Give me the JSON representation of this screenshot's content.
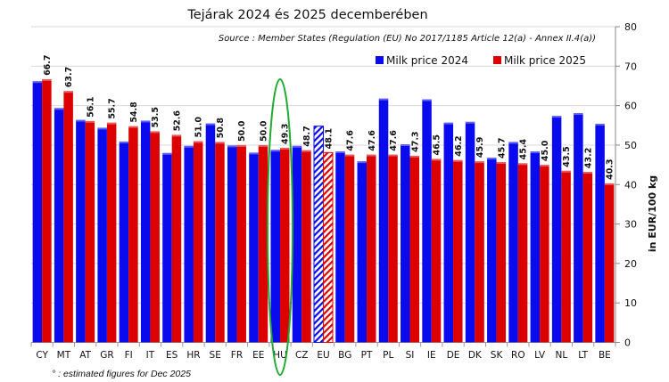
{
  "chart_data": {
    "type": "bar",
    "title": "Tejárak 2024 és 2025 decemberében",
    "subtitle": "Source : Member States (Regulation (EU) No 2017/1185 Article 12(a) - Annex II.4(a))",
    "ylabel": "in EUR/100 kg",
    "xlabel": "",
    "ylim": [
      0,
      80
    ],
    "yticks": [
      0,
      10,
      20,
      30,
      40,
      50,
      60,
      70,
      80
    ],
    "y_axis_side": "right",
    "grid": true,
    "legend_position": "top-right",
    "footnote": "° : estimated figures for Dec 2025",
    "highlight": "HU",
    "highlight_color": "#22aa33",
    "estimated_category": "EU",
    "categories": [
      "CY",
      "MT",
      "AT",
      "GR",
      "FI",
      "IT",
      "ES",
      "HR",
      "SE",
      "FR",
      "EE",
      "HU",
      "CZ",
      "EU",
      "BG",
      "PT",
      "PL",
      "SI",
      "IE",
      "DE",
      "DK",
      "SK",
      "RO",
      "LV",
      "NL",
      "LT",
      "BE"
    ],
    "series": [
      {
        "name": "Milk price 2024",
        "color": "#0a0aee",
        "values": [
          66.2,
          59.4,
          56.4,
          54.4,
          50.9,
          56.2,
          48.0,
          49.8,
          55.5,
          49.9,
          48.1,
          48.8,
          49.8,
          54.8,
          48.4,
          45.9,
          61.8,
          50.2,
          61.6,
          55.7,
          55.9,
          46.8,
          50.8,
          48.4,
          57.4,
          58.1,
          55.4
        ]
      },
      {
        "name": "Milk price 2025",
        "color": "#dd0000",
        "values": [
          66.7,
          63.7,
          56.1,
          55.7,
          54.8,
          53.5,
          52.6,
          51.0,
          50.8,
          50.0,
          50.0,
          49.3,
          48.7,
          48.1,
          47.6,
          47.6,
          47.6,
          47.3,
          46.5,
          46.2,
          45.9,
          45.7,
          45.4,
          45.0,
          43.5,
          43.2,
          40.3
        ],
        "data_labels": [
          "66.7",
          "63.7",
          "56.1",
          "55.7",
          "54.8",
          "53.5",
          "52.6",
          "51.0",
          "50.8",
          "50.0",
          "50.0",
          "49.3",
          "48.7",
          "48.1",
          "47.6",
          "47.6",
          "47.6",
          "47.3",
          "46.5",
          "46.2",
          "45.9",
          "45.7",
          "45.4",
          "45.0",
          "43.5",
          "43.2",
          "40.3"
        ]
      }
    ]
  }
}
